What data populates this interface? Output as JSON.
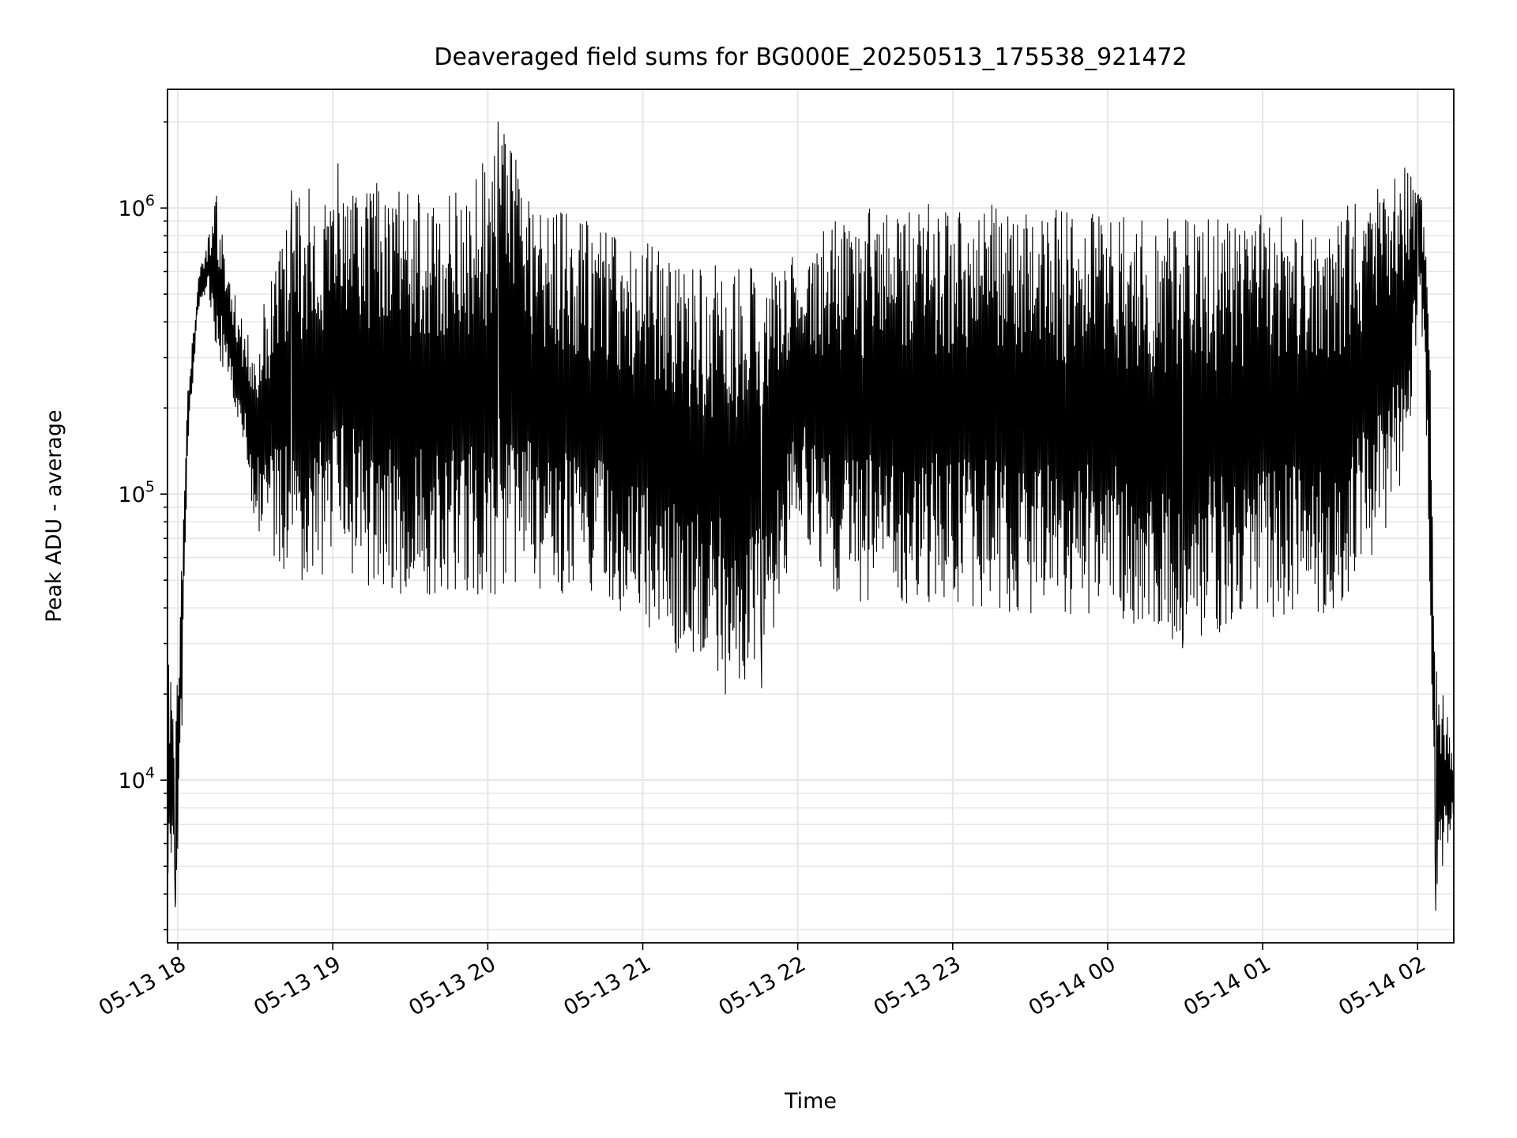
{
  "chart_data": {
    "type": "line",
    "title": "Deaveraged field sums for BG000E_20250513_175538_921472",
    "xlabel": "Time",
    "ylabel": "Peak ADU - average",
    "y_scale": "log",
    "ylim": [
      2700,
      2600000
    ],
    "xlim": [
      "2025-05-13 17:56",
      "2025-05-14 02:14"
    ],
    "grid": "major and minor, both axes",
    "x_ticks": [
      {
        "value": "2025-05-13 18:00",
        "label": "05-13 18"
      },
      {
        "value": "2025-05-13 19:00",
        "label": "05-13 19"
      },
      {
        "value": "2025-05-13 20:00",
        "label": "05-13 20"
      },
      {
        "value": "2025-05-13 21:00",
        "label": "05-13 21"
      },
      {
        "value": "2025-05-13 22:00",
        "label": "05-13 22"
      },
      {
        "value": "2025-05-13 23:00",
        "label": "05-13 23"
      },
      {
        "value": "2025-05-14 00:00",
        "label": "05-14 00"
      },
      {
        "value": "2025-05-14 01:00",
        "label": "05-14 01"
      },
      {
        "value": "2025-05-14 02:00",
        "label": "05-14 02"
      }
    ],
    "y_ticks": [
      {
        "value": 10000,
        "base": "10",
        "exp": "4"
      },
      {
        "value": 100000,
        "base": "10",
        "exp": "5"
      },
      {
        "value": 1000000,
        "base": "10",
        "exp": "6"
      }
    ],
    "series": [
      {
        "line_color": "#000000",
        "upper_envelope": [
          [
            "2025-05-13 17:56",
            30000
          ],
          [
            "2025-05-13 17:59",
            20000
          ],
          [
            "2025-05-13 18:01",
            60000
          ],
          [
            "2025-05-13 18:04",
            250000
          ],
          [
            "2025-05-13 18:08",
            600000
          ],
          [
            "2025-05-13 18:12",
            800000
          ],
          [
            "2025-05-13 18:15",
            1100000
          ],
          [
            "2025-05-13 18:20",
            600000
          ],
          [
            "2025-05-13 18:25",
            400000
          ],
          [
            "2025-05-13 18:30",
            350000
          ],
          [
            "2025-05-13 18:40",
            900000
          ],
          [
            "2025-05-13 18:50",
            1200000
          ],
          [
            "2025-05-13 19:00",
            1000000
          ],
          [
            "2025-05-13 19:05",
            1400000
          ],
          [
            "2025-05-13 19:20",
            1200000
          ],
          [
            "2025-05-13 19:40",
            1100000
          ],
          [
            "2025-05-13 20:00",
            1400000
          ],
          [
            "2025-05-13 20:04",
            2000000
          ],
          [
            "2025-05-13 20:20",
            1100000
          ],
          [
            "2025-05-13 20:40",
            900000
          ],
          [
            "2025-05-13 21:00",
            800000
          ],
          [
            "2025-05-13 21:20",
            650000
          ],
          [
            "2025-05-13 21:40",
            650000
          ],
          [
            "2025-05-13 21:50",
            600000
          ],
          [
            "2025-05-13 22:00",
            700000
          ],
          [
            "2025-05-13 22:15",
            950000
          ],
          [
            "2025-05-13 22:30",
            1000000
          ],
          [
            "2025-05-13 23:00",
            1050000
          ],
          [
            "2025-05-13 23:30",
            1000000
          ],
          [
            "2025-05-14 00:00",
            950000
          ],
          [
            "2025-05-14 00:30",
            950000
          ],
          [
            "2025-05-14 01:00",
            950000
          ],
          [
            "2025-05-14 01:30",
            1000000
          ],
          [
            "2025-05-14 01:55",
            1400000
          ],
          [
            "2025-05-14 02:01",
            1200000
          ],
          [
            "2025-05-14 02:04",
            900000
          ],
          [
            "2025-05-14 02:07",
            30000
          ],
          [
            "2025-05-14 02:14",
            12000
          ]
        ],
        "lower_envelope": [
          [
            "2025-05-13 17:56",
            4000
          ],
          [
            "2025-05-13 17:59",
            3600
          ],
          [
            "2025-05-13 18:01",
            8000
          ],
          [
            "2025-05-13 18:04",
            150000
          ],
          [
            "2025-05-13 18:08",
            450000
          ],
          [
            "2025-05-13 18:12",
            500000
          ],
          [
            "2025-05-13 18:15",
            300000
          ],
          [
            "2025-05-13 18:20",
            250000
          ],
          [
            "2025-05-13 18:25",
            150000
          ],
          [
            "2025-05-13 18:30",
            75000
          ],
          [
            "2025-05-13 18:40",
            55000
          ],
          [
            "2025-05-13 18:50",
            48000
          ],
          [
            "2025-05-13 19:00",
            55000
          ],
          [
            "2025-05-13 19:05",
            50000
          ],
          [
            "2025-05-13 19:20",
            45000
          ],
          [
            "2025-05-13 19:40",
            40000
          ],
          [
            "2025-05-13 20:00",
            42000
          ],
          [
            "2025-05-13 20:04",
            45000
          ],
          [
            "2025-05-13 20:20",
            45000
          ],
          [
            "2025-05-13 20:40",
            45000
          ],
          [
            "2025-05-13 21:00",
            32000
          ],
          [
            "2025-05-13 21:20",
            25000
          ],
          [
            "2025-05-13 21:40",
            22000
          ],
          [
            "2025-05-13 21:50",
            30000
          ],
          [
            "2025-05-13 22:00",
            80000
          ],
          [
            "2025-05-13 22:15",
            42000
          ],
          [
            "2025-05-13 22:30",
            42000
          ],
          [
            "2025-05-13 23:00",
            40000
          ],
          [
            "2025-05-13 23:30",
            38000
          ],
          [
            "2025-05-14 00:00",
            38000
          ],
          [
            "2025-05-14 00:30",
            30000
          ],
          [
            "2025-05-14 01:00",
            37000
          ],
          [
            "2025-05-14 01:30",
            38000
          ],
          [
            "2025-05-14 01:55",
            100000
          ],
          [
            "2025-05-14 02:01",
            500000
          ],
          [
            "2025-05-14 02:04",
            100000
          ],
          [
            "2025-05-14 02:07",
            3500
          ],
          [
            "2025-05-14 02:14",
            7000
          ]
        ],
        "peaks": [
          [
            "2025-05-13 18:15",
            1100000
          ],
          [
            "2025-05-13 18:44",
            1150000
          ],
          [
            "2025-05-13 19:02",
            1430000
          ],
          [
            "2025-05-13 19:17",
            1220000
          ],
          [
            "2025-05-13 19:58",
            1430000
          ],
          [
            "2025-05-13 20:04",
            2000000
          ],
          [
            "2025-05-14 01:55",
            1380000
          ],
          [
            "2025-05-14 02:00",
            1100000
          ]
        ],
        "troughs": [
          [
            "2025-05-13 17:59",
            3600
          ],
          [
            "2025-05-13 21:32",
            20000
          ],
          [
            "2025-05-13 21:46",
            21000
          ],
          [
            "2025-05-14 00:29",
            29000
          ],
          [
            "2025-05-14 02:07",
            3500
          ]
        ]
      }
    ]
  }
}
